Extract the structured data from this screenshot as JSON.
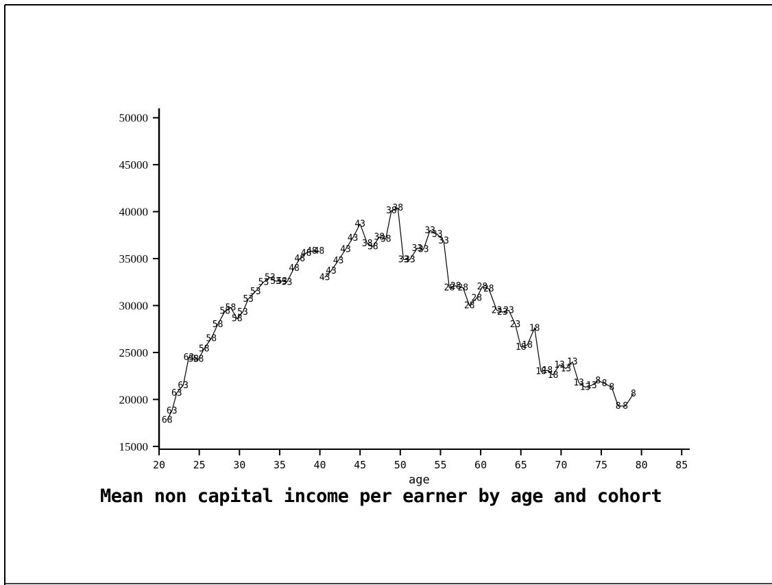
{
  "chart_data": {
    "type": "line",
    "title": "Mean non capital income per earner by age and cohort",
    "xlabel": "age",
    "ylabel": "",
    "xlim": [
      20,
      86
    ],
    "ylim": [
      14700,
      51000
    ],
    "xticks": [
      "20",
      "25",
      "30",
      "35",
      "40",
      "45",
      "50",
      "55",
      "60",
      "65",
      "70",
      "75",
      "80",
      "85"
    ],
    "yticks": [
      "15000",
      "20000",
      "25000",
      "30000",
      "35000",
      "40000",
      "45000",
      "50000"
    ],
    "grid": false,
    "series": [
      {
        "name": "68",
        "x": [
          21.0
        ],
        "y": [
          17800
        ]
      },
      {
        "name": "63",
        "x": [
          21.6,
          22.2
        ],
        "y": [
          18800,
          20700
        ]
      },
      {
        "name": "63b",
        "x": [
          23.0,
          23.7
        ],
        "y": [
          21500,
          24500
        ]
      },
      {
        "name": "58",
        "x": [
          24.3,
          24.9,
          25.6,
          26.5,
          27.3,
          28.2,
          28.9,
          29.7
        ],
        "y": [
          24300,
          24300,
          25400,
          26500,
          28000,
          29400,
          29800,
          28600
        ]
      },
      {
        "name": "53",
        "x": [
          30.4,
          31.1,
          32.0,
          33.0,
          33.8,
          34.5,
          35.3,
          35.9
        ],
        "y": [
          29300,
          30700,
          31500,
          32500,
          33000,
          32600,
          32600,
          32500
        ]
      },
      {
        "name": "48",
        "x": [
          36.8,
          37.5,
          38.3,
          39.0,
          39.9
        ],
        "y": [
          34000,
          35000,
          35600,
          35800,
          35800
        ]
      },
      {
        "name": "43",
        "x": [
          40.6,
          41.4,
          42.3,
          43.2,
          44.1,
          45.0
        ],
        "y": [
          33000,
          33700,
          34800,
          36000,
          37200,
          38700
        ]
      },
      {
        "name": "38",
        "x": [
          45.9,
          46.6,
          47.4,
          48.2,
          48.9,
          49.7
        ],
        "y": [
          36600,
          36300,
          37300,
          37100,
          40100,
          40400
        ]
      },
      {
        "name": "33",
        "x": [
          50.4,
          51.2,
          52.1,
          52.9,
          53.7,
          54.6,
          55.4
        ],
        "y": [
          34900,
          34900,
          36100,
          36000,
          38000,
          37600,
          36900
        ]
      },
      {
        "name": "28",
        "x": [
          56.1,
          56.9,
          57.8,
          58.6,
          59.5,
          60.2,
          61.0
        ],
        "y": [
          31900,
          32100,
          31900,
          30000,
          30800,
          32000,
          31800
        ]
      },
      {
        "name": "23",
        "x": [
          62.0,
          62.7,
          63.5,
          64.3
        ],
        "y": [
          29500,
          29300,
          29500,
          28000
        ]
      },
      {
        "name": "18",
        "x": [
          65.0,
          65.8,
          66.7,
          67.5,
          68.3,
          69.0
        ],
        "y": [
          25600,
          25800,
          27600,
          23000,
          23100,
          22600
        ]
      },
      {
        "name": "13",
        "x": [
          69.8,
          70.6,
          71.4,
          72.2,
          73.0,
          73.8
        ],
        "y": [
          23700,
          23300,
          24000,
          21800,
          21300,
          21500
        ]
      },
      {
        "name": "8",
        "x": [
          74.6,
          75.4,
          76.3,
          77.1,
          78.0,
          79.0
        ],
        "y": [
          22000,
          21700,
          21300,
          19300,
          19300,
          20600
        ]
      }
    ]
  }
}
